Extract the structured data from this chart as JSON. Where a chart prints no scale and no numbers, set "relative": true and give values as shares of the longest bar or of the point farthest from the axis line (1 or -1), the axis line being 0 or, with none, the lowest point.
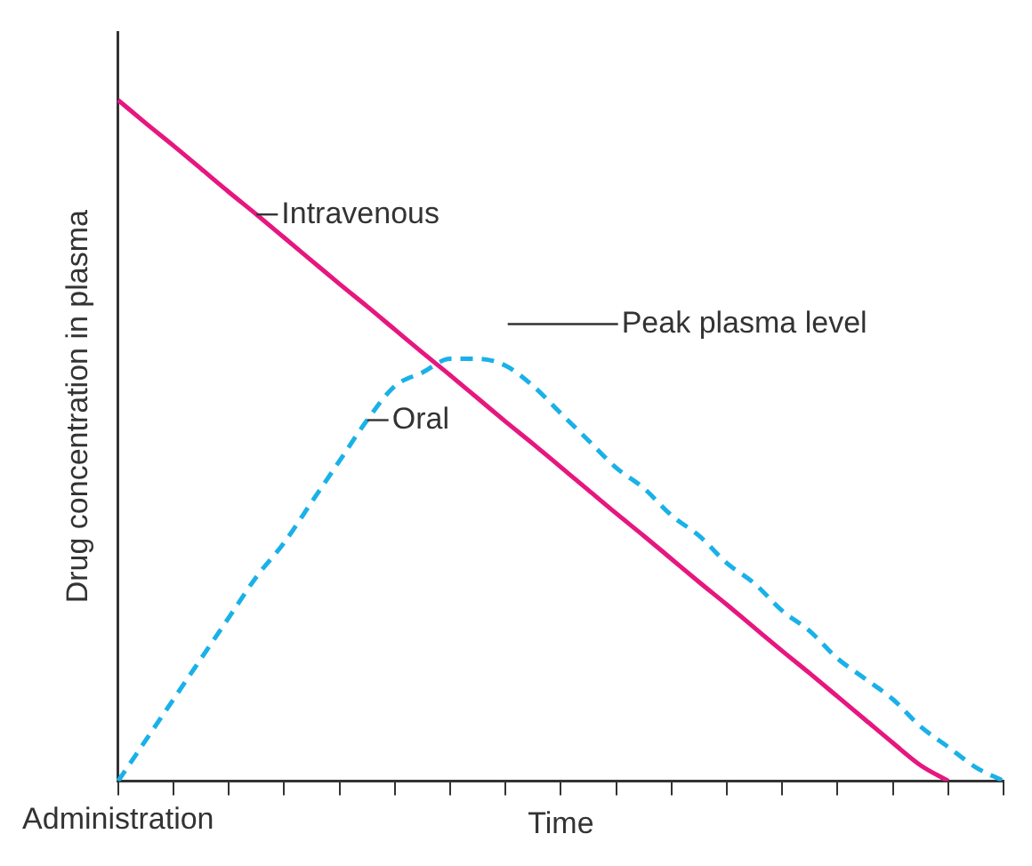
{
  "chart_data": {
    "type": "line",
    "relative": true,
    "xlabel": "Time",
    "ylabel": "Drug concentration in plasma",
    "categories": [
      null,
      null,
      null,
      null,
      null,
      null,
      null,
      null,
      null,
      null,
      null,
      null,
      null,
      null,
      null,
      null,
      null,
      null,
      null,
      null,
      null,
      null,
      null,
      null,
      null,
      null,
      null,
      null,
      null,
      null,
      null,
      null,
      null
    ],
    "series": [
      {
        "name": "Intravenous",
        "color": "#e6177f",
        "line_style": "solid",
        "values": [
          1.0,
          0.966,
          0.933,
          0.899,
          0.865,
          0.832,
          0.798,
          0.764,
          0.73,
          0.697,
          0.663,
          0.629,
          0.596,
          0.562,
          0.528,
          0.495,
          0.461,
          0.427,
          0.393,
          0.36,
          0.326,
          0.292,
          0.259,
          0.225,
          0.191,
          0.158,
          0.124,
          0.09,
          0.056,
          0.023,
          0.0,
          null,
          null
        ]
      },
      {
        "name": "Oral",
        "color": "#1ab1e8",
        "line_style": "dashed",
        "values": [
          0.0,
          0.06,
          0.12,
          0.18,
          0.24,
          0.3,
          0.35,
          0.41,
          0.47,
          0.53,
          0.58,
          0.6,
          0.62,
          0.62,
          0.61,
          0.58,
          0.54,
          0.5,
          0.46,
          0.43,
          0.39,
          0.36,
          0.32,
          0.29,
          0.25,
          0.22,
          0.18,
          0.15,
          0.12,
          0.08,
          0.05,
          0.02,
          0.0
        ]
      }
    ],
    "annotations": [
      "Peak plasma level",
      "Administration"
    ],
    "marker": "none",
    "grid": false,
    "legend": false
  }
}
